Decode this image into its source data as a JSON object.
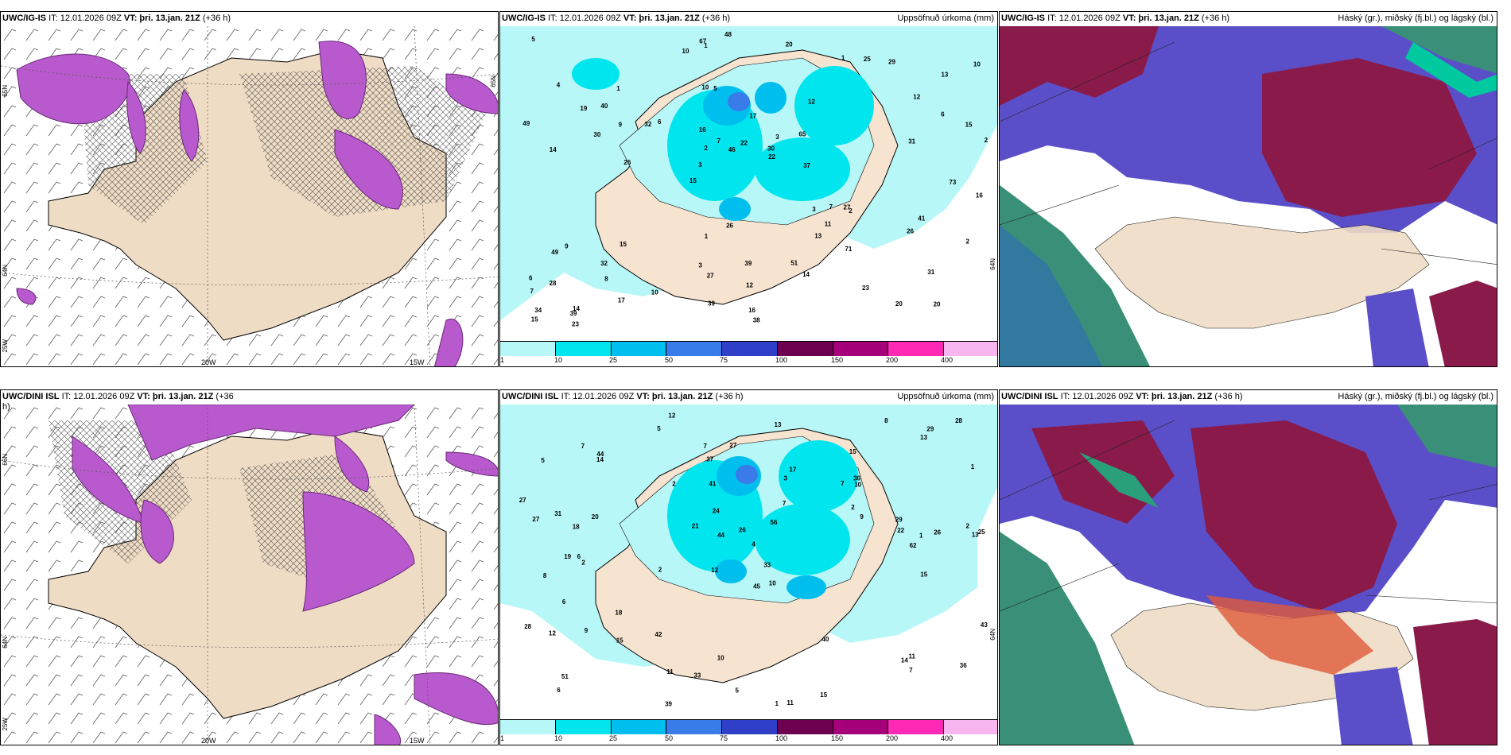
{
  "panels": {
    "top_left": {
      "model": "UWC/IG-IS",
      "it": "IT: 12.01.2026 09Z",
      "vt_label": "VT:",
      "vt": "þri. 13.jan. 21Z",
      "lead": "(+36 h)",
      "lat_left": "65N",
      "lat_right": "65N",
      "lat_left2": "64N",
      "lon1": "20W",
      "lon2": "15W",
      "lon_left": "25W"
    },
    "top_mid": {
      "model": "UWC/IG-IS",
      "it": "IT: 12.01.2026 09Z",
      "vt_label": "VT:",
      "vt": "þri. 13.jan. 21Z",
      "lead": "(+36 h)",
      "right_label": "Uppsöfnuð úrkoma (mm)",
      "lat_right": "64N"
    },
    "top_right": {
      "model": "UWC/IG-IS",
      "it": "IT: 12.01.2026 09Z",
      "vt_label": "VT:",
      "vt": "þri. 13.jan. 21Z",
      "lead": "(+36 h)",
      "right_label": "Háský (gr.), miðský (fj.bl.) og lágský (bl.)"
    },
    "bot_left": {
      "model": "UWC/DINI ISL",
      "it": "IT: 12.01.2026 09Z",
      "vt_label": "VT:",
      "vt": "þri. 13.jan. 21Z",
      "lead": "(+36",
      "lead2": "h)",
      "lat_left": "66N",
      "lat_left2": "64N",
      "lon1": "20W",
      "lon2": "15W",
      "lon_left": "25W"
    },
    "bot_mid": {
      "model": "UWC/DINI ISL",
      "it": "IT: 12.01.2026 09Z",
      "vt_label": "VT:",
      "vt": "þri. 13.jan. 21Z",
      "lead": "(+36 h)",
      "right_label": "Uppsöfnuð úrkoma (mm)",
      "lat_right": "64N"
    },
    "bot_right": {
      "model": "UWC/DINI ISL",
      "it": "IT: 12.01.2026 09Z",
      "vt_label": "VT:",
      "vt": "þri. 13.jan. 21Z",
      "lead": "(+36 h)",
      "right_label": "Háský (gr.), miðský (fj.bl.) og lágský (bl.)"
    }
  },
  "colorbar": {
    "ticks": [
      "1",
      "10",
      "25",
      "50",
      "75",
      "100",
      "150",
      "200",
      "400"
    ],
    "colors": [
      "#b8f7f7",
      "#00e5ee",
      "#00bfee",
      "#3a7bea",
      "#2f3fc8",
      "#6e0050",
      "#a5007a",
      "#ff29b6",
      "#f8b6f0"
    ]
  },
  "precip_top": [
    "20",
    "14",
    "13",
    "15",
    "12",
    "14",
    "10",
    "17",
    "9",
    "6",
    "7",
    "8",
    "5",
    "3",
    "2",
    "4",
    "1",
    "2",
    "3",
    "6",
    "3",
    "3",
    "2",
    "1",
    "1",
    "15",
    "20",
    "31",
    "27",
    "38",
    "32",
    "30",
    "13",
    "17",
    "15",
    "30",
    "34",
    "27",
    "22",
    "49",
    "12",
    "10",
    "11",
    "14",
    "32",
    "23",
    "15",
    "39",
    "29",
    "48",
    "26",
    "49",
    "40",
    "25",
    "39",
    "20",
    "10",
    "7",
    "2",
    "1",
    "10",
    "7",
    "9",
    "6",
    "5",
    "19",
    "16",
    "16",
    "12",
    "22",
    "28",
    "37",
    "41",
    "39",
    "31",
    "26",
    "23",
    "16",
    "51",
    "67",
    "73",
    "65",
    "71",
    "46",
    "26"
  ],
  "precip_bot": [
    "12",
    "15",
    "13",
    "12",
    "10",
    "6",
    "5",
    "7",
    "8",
    "3",
    "4",
    "6",
    "5",
    "2",
    "1",
    "11",
    "10",
    "8",
    "9",
    "18",
    "18",
    "19",
    "25",
    "26",
    "28",
    "31",
    "44",
    "22",
    "11",
    "12",
    "14",
    "17",
    "9",
    "21",
    "40",
    "43",
    "29",
    "33",
    "28",
    "27",
    "51",
    "39",
    "15",
    "7",
    "5",
    "10",
    "7",
    "36",
    "27",
    "33",
    "37",
    "62",
    "56",
    "13",
    "13",
    "15",
    "24",
    "26",
    "29",
    "41",
    "36",
    "15",
    "44",
    "42",
    "45",
    "27",
    "1",
    "2",
    "2",
    "1",
    "6",
    "7",
    "2",
    "2",
    "7",
    "20",
    "11",
    "14"
  ],
  "clouds_legend": {
    "high": "gr.",
    "mid": "fj.bl.",
    "low": "bl."
  }
}
